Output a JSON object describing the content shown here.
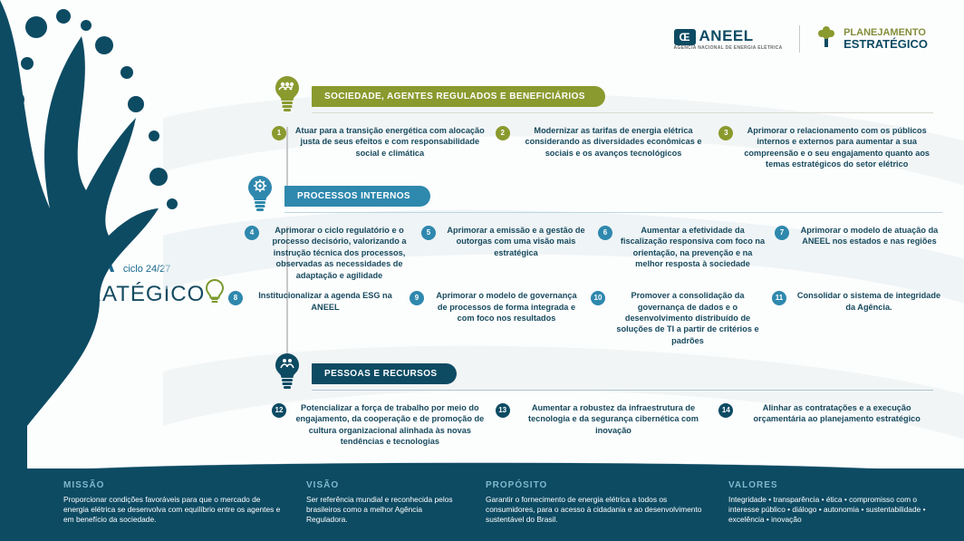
{
  "colors": {
    "olive": "#8a9a2e",
    "oliveDark": "#6f7e1f",
    "teal": "#2f88ad",
    "tealDark": "#1b6b8e",
    "navy": "#0d4b63",
    "navyDark": "#0a3c50",
    "text": "#174a5e",
    "footerHead": "#7fb8cc",
    "bg": "#fcfdfd",
    "lineGrey": "#d9dbd0"
  },
  "header": {
    "aneel_brand": "ANEEL",
    "aneel_tagline": "AGÊNCIA NACIONAL DE ENERGIA ELÉTRICA",
    "plan1": "PLANEJAMENTO",
    "plan2": "ESTRATÉGICO"
  },
  "title": {
    "mapa": "MAPA",
    "ciclo": "ciclo 24/27",
    "estrat": "ESTRATÉGICO"
  },
  "sections": [
    {
      "id": "sec1",
      "icon": "people",
      "iconColor": "#8a9a2e",
      "pillBg": "#8a9a2e",
      "lineColor": "#d9dbd0",
      "numBg": "#8a9a2e",
      "label": "SOCIEDADE, AGENTES REGULADOS E BENEFICIÁRIOS",
      "rows": [
        [
          {
            "n": "1",
            "t": "Atuar para a transição energética com alocação justa de seus efeitos e com responsabilidade social e climática"
          },
          {
            "n": "2",
            "t": "Modernizar as tarifas de energia elétrica considerando as diversidades econômicas e sociais e os avanços tecnológicos"
          },
          {
            "n": "3",
            "t": "Aprimorar o relacionamento com os públicos internos e externos para aumentar a sua compreensão e o seu engajamento quanto aos temas estratégicos do setor elétrico"
          }
        ]
      ]
    },
    {
      "id": "sec2",
      "icon": "gear",
      "iconColor": "#2f88ad",
      "pillBg": "#2f88ad",
      "lineColor": "#bcd6e1",
      "numBg": "#2f88ad",
      "label": "PROCESSOS INTERNOS",
      "rows": [
        [
          {
            "n": "4",
            "t": "Aprimorar o ciclo regulatório e o processo decisório, valorizando a instrução técnica dos processos, observadas as necessidades de adaptação e agilidade"
          },
          {
            "n": "5",
            "t": "Aprimorar a emissão e a gestão de outorgas com uma visão mais estratégica"
          },
          {
            "n": "6",
            "t": "Aumentar a efetividade da fiscalização responsiva com foco na orientação, na prevenção e na melhor resposta à sociedade"
          },
          {
            "n": "7",
            "t": "Aprimorar o modelo de atuação da ANEEL nos estados e nas regiões"
          }
        ],
        [
          {
            "n": "8",
            "t": "Institucionalizar a agenda ESG na ANEEL"
          },
          {
            "n": "9",
            "t": "Aprimorar o modelo de governança de processos de forma integrada e com foco nos resultados"
          },
          {
            "n": "10",
            "t": "Promover a consolidação da governança de dados e o desenvolvimento distribuído de soluções de TI a partir de critérios e padrões"
          },
          {
            "n": "11",
            "t": "Consolidar o sistema de integridade da Agência."
          }
        ]
      ]
    },
    {
      "id": "sec3",
      "icon": "hands",
      "iconColor": "#0d4b63",
      "pillBg": "#0d4b63",
      "lineColor": "#aec6d0",
      "numBg": "#0d4b63",
      "label": "PESSOAS E RECURSOS",
      "rows": [
        [
          {
            "n": "12",
            "t": "Potencializar a força de trabalho por meio do engajamento, da cooperação e de promoção de cultura organizacional alinhada às novas tendências e tecnologias"
          },
          {
            "n": "13",
            "t": "Aumentar a robustez da infraestrutura de tecnologia e da segurança cibernética com inovação"
          },
          {
            "n": "14",
            "t": "Alinhar as contratações e a execução orçamentária ao planejamento estratégico"
          }
        ]
      ]
    }
  ],
  "footer": {
    "missao": {
      "h": "MISSÃO",
      "t": "Proporcionar condições favoráveis para que o mercado de energia elétrica se desenvolva com equilíbrio entre os agentes e em benefício da sociedade."
    },
    "visao": {
      "h": "VISÃO",
      "t": "Ser referência mundial e reconhecida pelos brasileiros como a melhor Agência Reguladora."
    },
    "proposito": {
      "h": "PROPÓSITO",
      "t": "Garantir o fornecimento de energia elétrica a todos os consumidores, para o acesso à cidadania e ao desenvolvimento sustentável do Brasil."
    },
    "valores": {
      "h": "VALORES",
      "t": "Integridade • transparência • ética • compromisso com o interesse público • diálogo • autonomia • sustentabilidade • excelência • inovação"
    }
  }
}
